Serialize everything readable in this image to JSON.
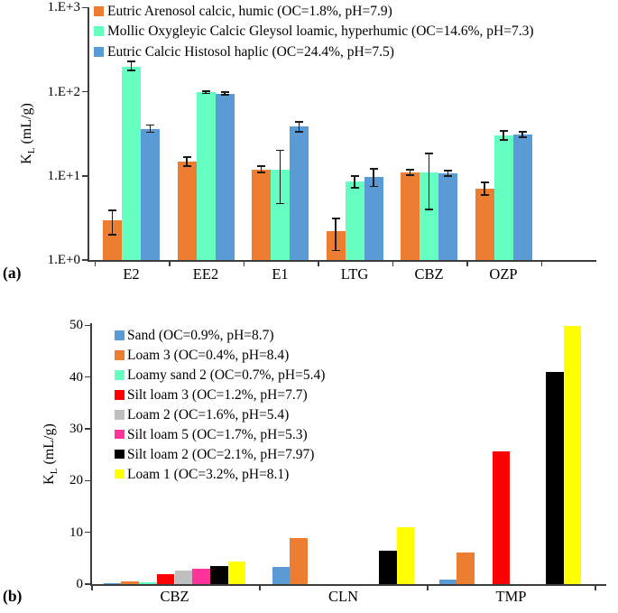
{
  "chart_data": [
    {
      "panel": "(a)",
      "type": "bar",
      "scale": "log",
      "ylabel": {
        "pre": "K",
        "sub": "L",
        "post": " (mL/g)"
      },
      "yticks": [
        "1.E+0",
        "1.E+1",
        "1.E+2",
        "1.E+3"
      ],
      "ytick_values": [
        1,
        10,
        100,
        1000
      ],
      "ylim": [
        1,
        1000
      ],
      "grid": false,
      "legend_position": "top-left-inside",
      "categories": [
        "E2",
        "EE2",
        "E1",
        "LTG",
        "CBZ",
        "OZP"
      ],
      "series": [
        {
          "name": "Eutric Arenosol calcic, humic (OC=1.8%, pH=7.9)",
          "color": "#ED7D31",
          "values": [
            3.0,
            14.8,
            11.9,
            2.2,
            11.0,
            7.0
          ],
          "err_lo": [
            2.0,
            13.0,
            11.0,
            1.3,
            10.2,
            5.9
          ],
          "err_hi": [
            3.9,
            16.7,
            13.0,
            3.1,
            11.8,
            8.4
          ]
        },
        {
          "name": "Mollic Oxygleyic Calcic Gleysol loamic, hyperhumic (OC=14.6%, pH=7.3)",
          "color": "#66FFC2",
          "values": [
            200,
            98,
            11.9,
            8.6,
            11.0,
            30.3
          ],
          "err_lo": [
            180,
            95,
            4.7,
            7.2,
            4.0,
            26.8
          ],
          "err_hi": [
            230,
            102,
            20.0,
            10.0,
            18.4,
            34.2
          ]
        },
        {
          "name": "Eutric Calcic Histosol haplic (OC=24.4%, pH=7.5)",
          "color": "#5B9BD5",
          "values": [
            36,
            95,
            38.7,
            9.8,
            10.7,
            31.0
          ],
          "err_lo": [
            33,
            92,
            33.4,
            7.5,
            10.0,
            28.7
          ],
          "err_hi": [
            40,
            99,
            43.8,
            12.2,
            11.5,
            33.5
          ]
        }
      ]
    },
    {
      "panel": "(b)",
      "type": "bar",
      "scale": "linear",
      "ylabel": {
        "pre": "K",
        "sub": "L",
        "post": " (mL/g)"
      },
      "yticks": [
        "0",
        "10",
        "20",
        "30",
        "40",
        "50"
      ],
      "ytick_values": [
        0,
        10,
        20,
        30,
        40,
        50
      ],
      "ylim": [
        0,
        50
      ],
      "grid": false,
      "legend_position": "top-left-inside",
      "categories": [
        "CBZ",
        "CLN",
        "TMP"
      ],
      "series": [
        {
          "name": "Sand (OC=0.9%, pH=8.7)",
          "color": "#5B9BD5",
          "values": [
            0.1,
            3.3,
            0.9
          ]
        },
        {
          "name": "Loam 3 (OC=0.4%, pH=8.4)",
          "color": "#ED7D31",
          "values": [
            0.5,
            8.9,
            6.1
          ]
        },
        {
          "name": "Loamy sand 2 (OC=0.7%, pH=5.4)",
          "color": "#66FFC2",
          "values": [
            0.4,
            0,
            0
          ]
        },
        {
          "name": "Silt loam 3 (OC=1.2%, pH=7.7)",
          "color": "#FF0000",
          "values": [
            1.9,
            0,
            25.6
          ]
        },
        {
          "name": "Loam 2 (OC=1.6%, pH=5.4)",
          "color": "#BFBFBF",
          "values": [
            2.6,
            0,
            0
          ]
        },
        {
          "name": "Silt loam 5 (OC=1.7%, pH=5.3)",
          "color": "#FF3399",
          "values": [
            3.0,
            0,
            0
          ]
        },
        {
          "name": "Silt loam 2 (OC=2.1%, pH=7.97)",
          "color": "#000000",
          "values": [
            3.5,
            6.5,
            41.0
          ]
        },
        {
          "name": "Loam 1 (OC=3.2%, pH=8.1)",
          "color": "#FFFF00",
          "values": [
            4.4,
            11.0,
            49.8
          ]
        }
      ]
    }
  ]
}
